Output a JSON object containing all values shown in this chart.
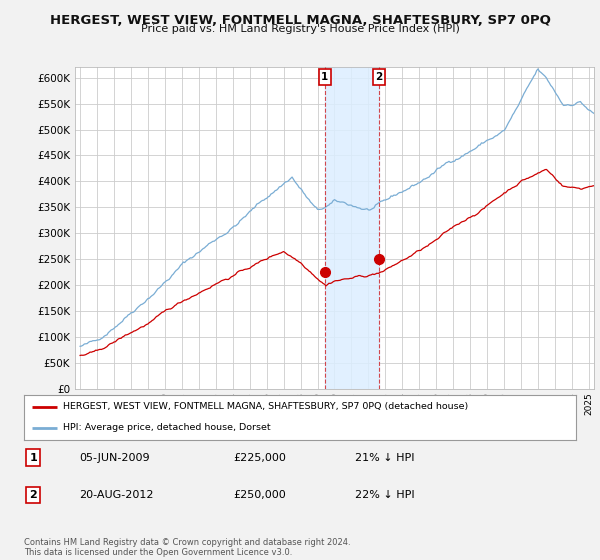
{
  "title": "HERGEST, WEST VIEW, FONTMELL MAGNA, SHAFTESBURY, SP7 0PQ",
  "subtitle": "Price paid vs. HM Land Registry's House Price Index (HPI)",
  "background_color": "#f2f2f2",
  "plot_bg_color": "#ffffff",
  "ylim": [
    0,
    620000
  ],
  "yticks": [
    0,
    50000,
    100000,
    150000,
    200000,
    250000,
    300000,
    350000,
    400000,
    450000,
    500000,
    550000,
    600000
  ],
  "legend_label_red": "HERGEST, WEST VIEW, FONTMELL MAGNA, SHAFTESBURY, SP7 0PQ (detached house)",
  "legend_label_blue": "HPI: Average price, detached house, Dorset",
  "footer": "Contains HM Land Registry data © Crown copyright and database right 2024.\nThis data is licensed under the Open Government Licence v3.0.",
  "transaction1_date": "05-JUN-2009",
  "transaction1_price": "£225,000",
  "transaction1_pct": "21% ↓ HPI",
  "transaction2_date": "20-AUG-2012",
  "transaction2_price": "£250,000",
  "transaction2_pct": "22% ↓ HPI",
  "red_color": "#cc0000",
  "blue_color": "#7aadd4",
  "shade_color": "#dceeff",
  "trans1_x": 2009.43,
  "trans1_y": 225000,
  "trans2_x": 2012.63,
  "trans2_y": 250000,
  "xlim_left": 1994.7,
  "xlim_right": 2025.3
}
